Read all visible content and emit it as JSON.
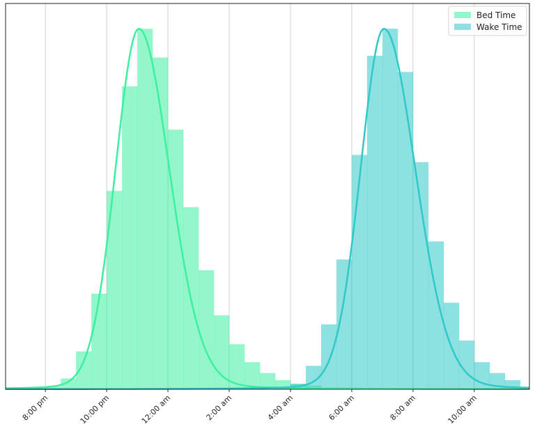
{
  "chart_data": {
    "type": "histogram",
    "title": "",
    "xlabel": "",
    "ylabel": "",
    "x_unit": "hours after 12:00 pm (same-day); values > 24 are next-day",
    "xlim": [
      6.7,
      23.8
    ],
    "ylim": [
      0,
      1.07
    ],
    "grid": {
      "x": true,
      "y": false
    },
    "y_ticks_shown": false,
    "legend": {
      "placement": "top-right"
    },
    "x_ticks": [
      {
        "value": 8,
        "label": "8:00 pm"
      },
      {
        "value": 10,
        "label": "10:00 pm"
      },
      {
        "value": 12,
        "label": "12:00 am"
      },
      {
        "value": 14,
        "label": "2:00 am"
      },
      {
        "value": 16,
        "label": "4:00 am"
      },
      {
        "value": 18,
        "label": "6:00 am"
      },
      {
        "value": 20,
        "label": "8:00 am"
      },
      {
        "value": 22,
        "label": "10:00 am"
      }
    ],
    "series": [
      {
        "name": "Bed Time",
        "color": "#3cf0a0",
        "bin_width": 0.5,
        "bins": [
          {
            "x0": 7.5,
            "value": 0.002
          },
          {
            "x0": 8.0,
            "value": 0.008
          },
          {
            "x0": 8.5,
            "value": 0.03
          },
          {
            "x0": 9.0,
            "value": 0.105
          },
          {
            "x0": 9.5,
            "value": 0.265
          },
          {
            "x0": 10.0,
            "value": 0.55
          },
          {
            "x0": 10.5,
            "value": 0.84
          },
          {
            "x0": 11.0,
            "value": 1.0
          },
          {
            "x0": 11.5,
            "value": 0.92
          },
          {
            "x0": 12.0,
            "value": 0.72
          },
          {
            "x0": 12.5,
            "value": 0.505
          },
          {
            "x0": 13.0,
            "value": 0.33
          },
          {
            "x0": 13.5,
            "value": 0.205
          },
          {
            "x0": 14.0,
            "value": 0.125
          },
          {
            "x0": 14.5,
            "value": 0.075
          },
          {
            "x0": 15.0,
            "value": 0.045
          },
          {
            "x0": 15.5,
            "value": 0.025
          },
          {
            "x0": 16.0,
            "value": 0.015
          },
          {
            "x0": 16.5,
            "value": 0.01
          }
        ],
        "kde": {
          "peak_x": 11.05,
          "peak_y": 1.0,
          "sigma_left": 0.78,
          "sigma_right": 1.02,
          "tail_fraction": 0.09
        }
      },
      {
        "name": "Wake Time",
        "color": "#30c8c8",
        "bin_width": 0.5,
        "bins": [
          {
            "x0": 15.5,
            "value": 0.005
          },
          {
            "x0": 16.0,
            "value": 0.015
          },
          {
            "x0": 16.5,
            "value": 0.065
          },
          {
            "x0": 17.0,
            "value": 0.18
          },
          {
            "x0": 17.5,
            "value": 0.36
          },
          {
            "x0": 18.0,
            "value": 0.65
          },
          {
            "x0": 18.5,
            "value": 0.925
          },
          {
            "x0": 19.0,
            "value": 1.0
          },
          {
            "x0": 19.5,
            "value": 0.88
          },
          {
            "x0": 20.0,
            "value": 0.63
          },
          {
            "x0": 20.5,
            "value": 0.41
          },
          {
            "x0": 21.0,
            "value": 0.24
          },
          {
            "x0": 21.5,
            "value": 0.135
          },
          {
            "x0": 22.0,
            "value": 0.075
          },
          {
            "x0": 22.5,
            "value": 0.045
          },
          {
            "x0": 23.0,
            "value": 0.025
          }
        ],
        "kde": {
          "peak_x": 19.05,
          "peak_y": 1.0,
          "sigma_left": 0.78,
          "sigma_right": 1.05,
          "tail_fraction": 0.09
        }
      }
    ]
  }
}
